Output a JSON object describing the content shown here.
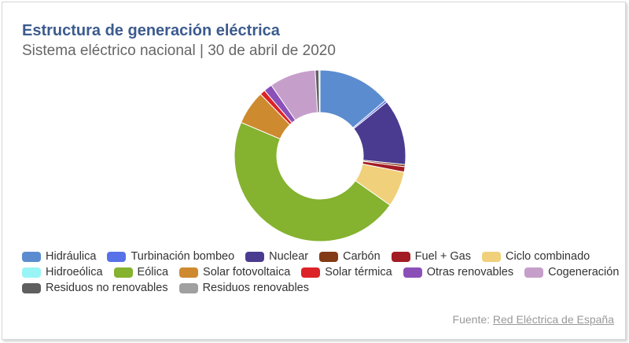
{
  "header": {
    "title": "Estructura de generación eléctrica",
    "subtitle": "Sistema eléctrico nacional | 30 de abril de 2020"
  },
  "source": {
    "prefix": "Fuente: ",
    "link_text": "Red Eléctrica de España"
  },
  "chart_data": {
    "type": "pie",
    "variant": "donut",
    "title": "Estructura de generación eléctrica",
    "subtitle": "Sistema eléctrico nacional | 30 de abril de 2020",
    "unit": "%",
    "start_angle": "top, clockwise",
    "legend_position": "bottom",
    "slices": [
      {
        "name": "Hidráulica",
        "value": 13.8,
        "color": "#5b8ccf"
      },
      {
        "name": "Turbinación bombeo",
        "value": 0.4,
        "color": "#5771e8"
      },
      {
        "name": "Nuclear",
        "value": 12.4,
        "color": "#4a3b90"
      },
      {
        "name": "Carbón",
        "value": 0.4,
        "color": "#833a17"
      },
      {
        "name": "Fuel + Gas",
        "value": 1.0,
        "color": "#a21c24"
      },
      {
        "name": "Ciclo combinado",
        "value": 6.7,
        "color": "#f0d07a"
      },
      {
        "name": "Hidroeólica",
        "value": 0.0,
        "color": "#99f5f5"
      },
      {
        "name": "Eólica",
        "value": 46.5,
        "color": "#85b22f"
      },
      {
        "name": "Solar fotovoltaica",
        "value": 6.4,
        "color": "#ce8a2f"
      },
      {
        "name": "Solar térmica",
        "value": 1.0,
        "color": "#dc2327"
      },
      {
        "name": "Otras renovables",
        "value": 1.6,
        "color": "#8a50b8"
      },
      {
        "name": "Cogeneración",
        "value": 8.7,
        "color": "#c59fca"
      },
      {
        "name": "Residuos no renovables",
        "value": 0.7,
        "color": "#5f5f5f"
      },
      {
        "name": "Residuos renovables",
        "value": 0.2,
        "color": "#a0a0a0"
      }
    ]
  },
  "legend": {
    "rows": [
      [
        0,
        1,
        2,
        3,
        4,
        5
      ],
      [
        6,
        7,
        8,
        9,
        10,
        11
      ],
      [
        12,
        13
      ]
    ]
  }
}
